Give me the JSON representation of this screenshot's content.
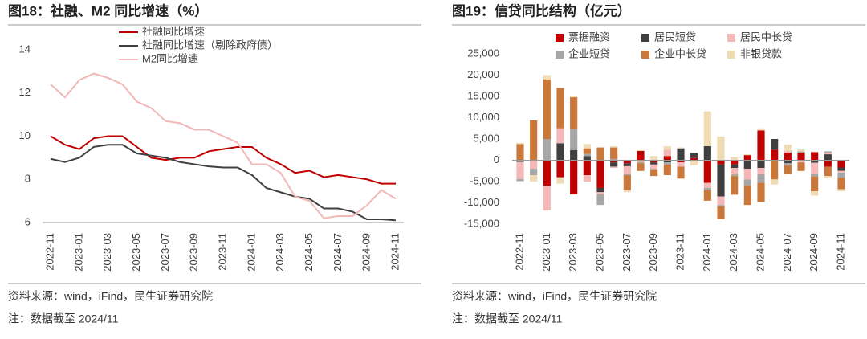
{
  "chart_data": [
    {
      "type": "line",
      "title": "图18：社融、M2 同比增速（%）",
      "categories": [
        "2022-11",
        null,
        "2023-01",
        null,
        "2023-03",
        null,
        "2023-05",
        null,
        "2023-07",
        null,
        "2023-09",
        null,
        "2023-11",
        null,
        "2024-01",
        null,
        "2024-03",
        null,
        "2024-05",
        null,
        "2024-07",
        null,
        "2024-09",
        null,
        "2024-11"
      ],
      "series": [
        {
          "name": "社融同比增速",
          "color": "#c00000",
          "values": [
            10.0,
            9.6,
            9.4,
            9.9,
            10.0,
            10.0,
            9.5,
            9.0,
            8.9,
            9.0,
            9.0,
            9.3,
            9.4,
            9.5,
            9.5,
            9.0,
            8.7,
            8.3,
            8.4,
            8.1,
            8.2,
            8.1,
            8.0,
            7.8,
            7.8
          ]
        },
        {
          "name": "社融同比增速（剔除政府债）",
          "color": "#404040",
          "values": [
            8.95,
            8.8,
            9.0,
            9.5,
            9.6,
            9.6,
            9.2,
            9.1,
            9.0,
            8.8,
            8.7,
            8.6,
            8.55,
            8.55,
            8.2,
            7.6,
            7.4,
            7.2,
            7.1,
            6.65,
            6.65,
            6.5,
            6.15,
            6.15,
            6.1
          ]
        },
        {
          "name": "M2同比增速",
          "color": "#f2b8b8",
          "values": [
            12.4,
            11.8,
            12.6,
            12.9,
            12.7,
            12.4,
            11.6,
            11.3,
            10.7,
            10.6,
            10.3,
            10.3,
            10.0,
            9.7,
            8.7,
            8.7,
            8.3,
            7.2,
            7.0,
            6.2,
            6.3,
            6.3,
            6.8,
            7.5,
            7.1
          ]
        }
      ],
      "ylim": [
        6,
        14
      ],
      "yticks": [
        6,
        8,
        10,
        12,
        14
      ],
      "grid": false,
      "source": "资料来源：wind，iFind，民生证券研究院",
      "note": "注：数据截至 2024/11"
    },
    {
      "type": "bar",
      "stacked": true,
      "title": "图19：信贷同比结构（亿元）",
      "categories": [
        "2022-11",
        null,
        "2023-01",
        null,
        "2023-03",
        null,
        "2023-05",
        null,
        "2023-07",
        null,
        "2023-09",
        null,
        "2023-11",
        null,
        "2024-01",
        null,
        "2024-03",
        null,
        "2024-05",
        null,
        "2024-07",
        null,
        "2024-09",
        null,
        "2024-11"
      ],
      "series": [
        {
          "name": "票据融资",
          "color": "#c00000",
          "values": [
            0,
            0,
            -6000,
            -4000,
            -8000,
            -3500,
            -6500,
            -500,
            -700,
            2200,
            -500,
            1000,
            -500,
            500,
            -5300,
            -1000,
            -1000,
            1200,
            7000,
            2500,
            1800,
            1800,
            1900,
            -1500,
            -1700
          ]
        },
        {
          "name": "居民短贷",
          "color": "#3f3f3f",
          "values": [
            -400,
            0,
            0,
            4000,
            2400,
            1000,
            -1000,
            -1000,
            -700,
            0,
            -500,
            -500,
            2800,
            1200,
            3300,
            -7500,
            -800,
            -2000,
            -1800,
            2500,
            -700,
            0,
            -600,
            1400,
            -800
          ]
        },
        {
          "name": "居民中长贷",
          "color": "#f4b8b8",
          "values": [
            -4000,
            -2000,
            -5800,
            3500,
            0,
            -1500,
            -500,
            -300,
            -1800,
            -400,
            -1000,
            1500,
            -1000,
            0,
            -1200,
            -2000,
            -1500,
            -2500,
            -1500,
            0,
            400,
            -500,
            -2500,
            400,
            -400
          ]
        },
        {
          "name": "企业短贷",
          "color": "#a6a6a6",
          "values": [
            -500,
            -1500,
            5000,
            0,
            5000,
            500,
            -2500,
            300,
            -300,
            -300,
            -200,
            -500,
            0,
            -200,
            -500,
            -300,
            -400,
            -1500,
            -2000,
            0,
            -500,
            300,
            -700,
            300,
            -1200
          ]
        },
        {
          "name": "企业中长贷",
          "color": "#c9773a",
          "values": [
            3800,
            9400,
            14000,
            9500,
            7400,
            1300,
            3000,
            2700,
            -3500,
            -1800,
            -1500,
            -2500,
            -2800,
            0,
            -2500,
            -3000,
            -4400,
            -4500,
            -4500,
            -4500,
            -2000,
            -2000,
            -3500,
            -2200,
            -2700
          ]
        },
        {
          "name": "非银贷款",
          "color": "#efdcb5",
          "values": [
            300,
            -1500,
            1000,
            -1500,
            200,
            1000,
            0,
            300,
            -500,
            200,
            1000,
            800,
            200,
            -1000,
            8200,
            5600,
            700,
            200,
            500,
            -1200,
            1500,
            500,
            -1000,
            -500,
            -500
          ]
        }
      ],
      "ylim": [
        -15000,
        25000
      ],
      "yticks": [
        {
          "value": -15000,
          "label": "-15,000"
        },
        {
          "value": -10000,
          "label": "-10,000"
        },
        {
          "value": -5000,
          "label": "-5,000"
        },
        0,
        {
          "value": 5000,
          "label": "5,000"
        },
        {
          "value": 10000,
          "label": "10,000"
        },
        {
          "value": 15000,
          "label": "15,000"
        },
        {
          "value": 20000,
          "label": "20,000"
        },
        {
          "value": 25000,
          "label": "25,000"
        }
      ],
      "grid": false,
      "source": "资料来源：wind，iFind，民生证券研究院",
      "note": "注：数据截至 2024/11"
    }
  ]
}
